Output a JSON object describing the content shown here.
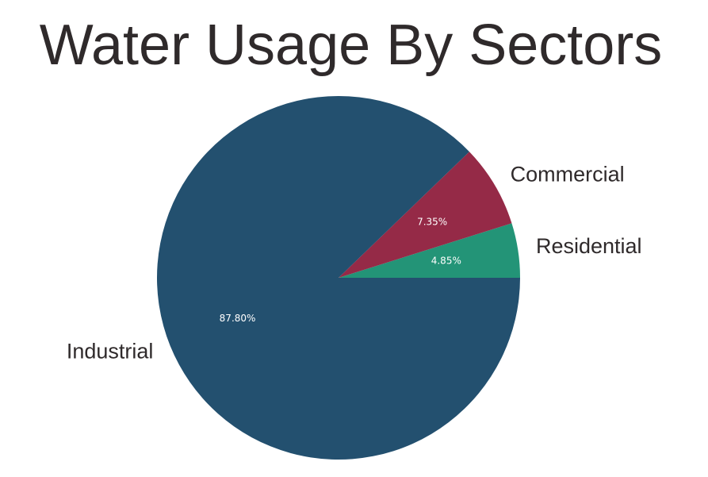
{
  "chart_data": {
    "type": "pie",
    "title": "Water Usage By Sectors",
    "labels": [
      "Residential",
      "Commercial",
      "Industrial"
    ],
    "values": [
      4.85,
      7.35,
      87.8
    ],
    "percent_labels": [
      "4.85%",
      "7.35%",
      "87.80%"
    ],
    "colors": [
      "#239477",
      "#952a47",
      "#23506f"
    ],
    "start_angle_deg": 0,
    "direction": "counterclockwise",
    "legend": "none"
  }
}
